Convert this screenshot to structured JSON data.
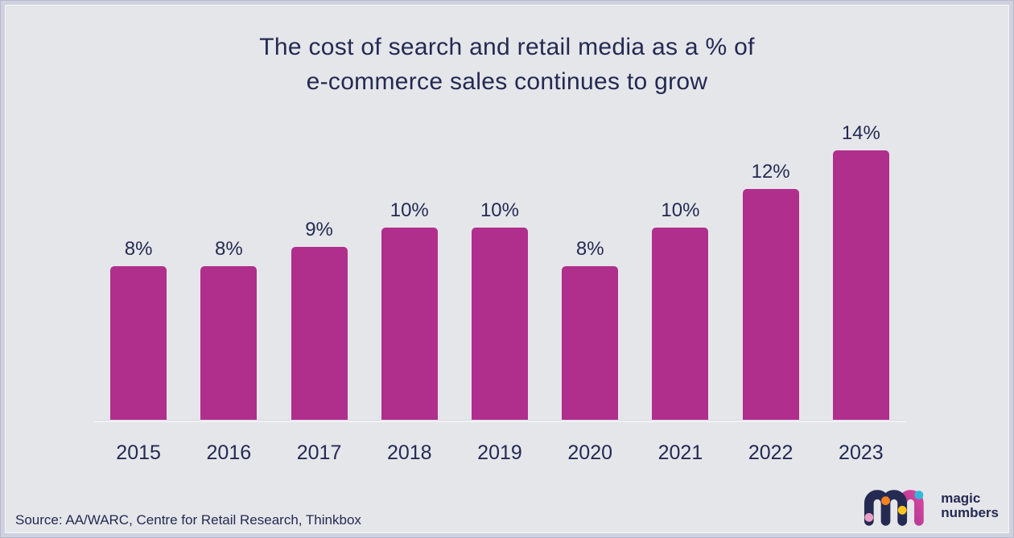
{
  "header": {
    "title_line1": "The cost of search and retail media as a % of",
    "title_line2": "e-commerce sales continues to grow"
  },
  "chart_data": {
    "type": "bar",
    "categories": [
      "2015",
      "2016",
      "2017",
      "2018",
      "2019",
      "2020",
      "2021",
      "2022",
      "2023"
    ],
    "values": [
      8,
      8,
      9,
      10,
      10,
      8,
      10,
      12,
      14
    ],
    "value_labels": [
      "8%",
      "8%",
      "9%",
      "10%",
      "10%",
      "8%",
      "10%",
      "12%",
      "14%"
    ],
    "title": "The cost of search and retail media as a % of e-commerce sales continues to grow",
    "xlabel": "",
    "ylabel": "",
    "ylim": [
      0,
      15
    ],
    "grid": false,
    "legend": false,
    "bar_color": "#b02f8c"
  },
  "footer": {
    "source": "Source: AA/WARC, Centre for Retail Research, Thinkbox",
    "logo": {
      "line1": "magic",
      "line2": "numbers",
      "icon": "mn-logo-icon"
    }
  },
  "colors": {
    "background": "#e5e6ea",
    "frame": "#cfd2de",
    "bar": "#b02f8c",
    "navy": "#242a52",
    "logo_magenta": "#c0399a",
    "dot_pink": "#e9a0c6",
    "dot_orange": "#f58220",
    "dot_yellow": "#ffc51c",
    "dot_cyan": "#35b6d9"
  }
}
